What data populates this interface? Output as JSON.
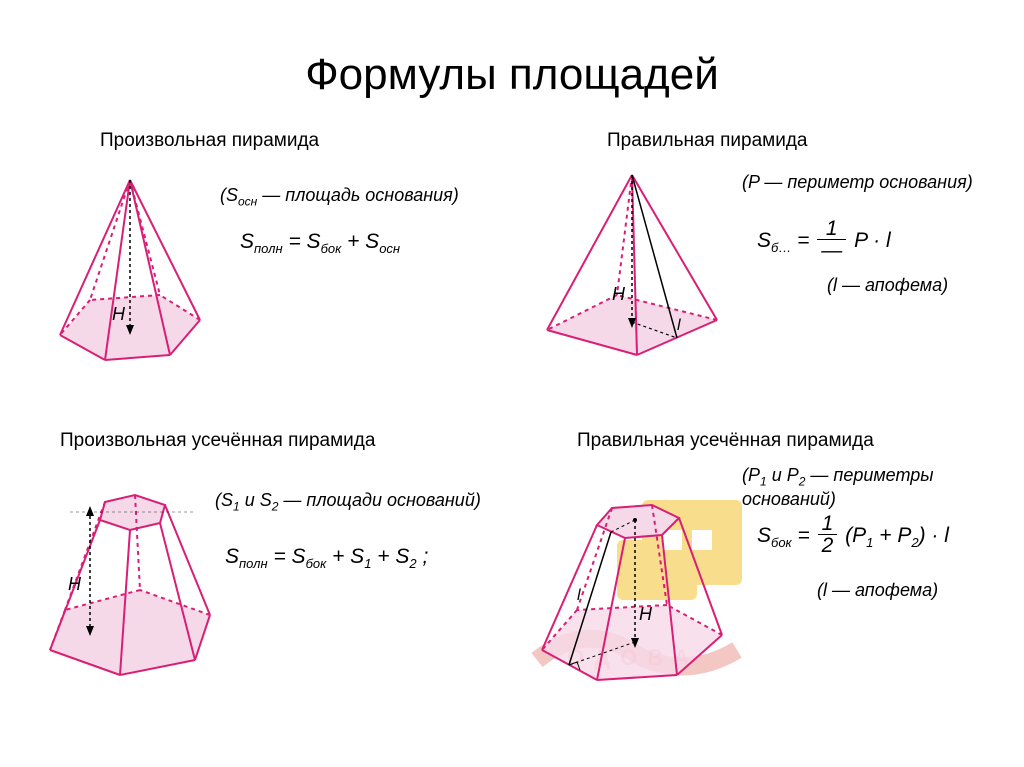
{
  "title": "Формулы площадей",
  "colors": {
    "stroke": "#d91e76",
    "fill": "#f6d9e8",
    "text": "#000000",
    "bg": "#ffffff",
    "watermark1": "#f4c430",
    "watermark2": "#d4342a"
  },
  "cells": {
    "c1": {
      "title": "Произвольная пирамида",
      "note_html": "(S<sub class='sub'>осн</sub> — площадь основания)",
      "formula_html": "S<span class='sub'>полн</span> = S<span class='sub'>бок</span> + S<span class='sub'>осн</span>",
      "H_label": "H"
    },
    "c2": {
      "title": "Правильная пирамида",
      "note_html": "(P — периметр основания)",
      "formula_html": "S<span class='sub'>б…</span> = <span class='frac'><span class='num'>1</span><span class='den'>—</span></span> P · l",
      "note2_html": "(l — апофема)",
      "H_label": "H",
      "l_label": "l"
    },
    "c3": {
      "title": "Произвольная усечённая пирамида",
      "note_html": "(S<sub class='sub'>1</sub> и S<sub class='sub'>2</sub> — площади оснований)",
      "formula_html": "S<span class='sub'>полн</span> = S<span class='sub'>бок</span> + S<span class='sub'>1</span> + S<span class='sub'>2</span> ;",
      "H_label": "H"
    },
    "c4": {
      "title": "Правильная усечённая пирамида",
      "note_html": "(P<sub class='sub'>1</sub> и P<sub class='sub'>2</sub> — периметры оснований)",
      "formula_html": "S<span class='sub'>бок</span> = <span class='frac'><span class='num'>1</span><span class='den'>2</span></span> (P<span class='sub'>1</span> + P<span class='sub'>2</span>) · l",
      "note2_html": "(l — апофема)",
      "H_label": "H",
      "l_label": "l"
    }
  },
  "style": {
    "title_fontsize": 44,
    "cell_title_fontsize": 19,
    "note_fontsize": 18,
    "formula_fontsize": 21,
    "stroke_width": 2,
    "dash": "4,4"
  }
}
